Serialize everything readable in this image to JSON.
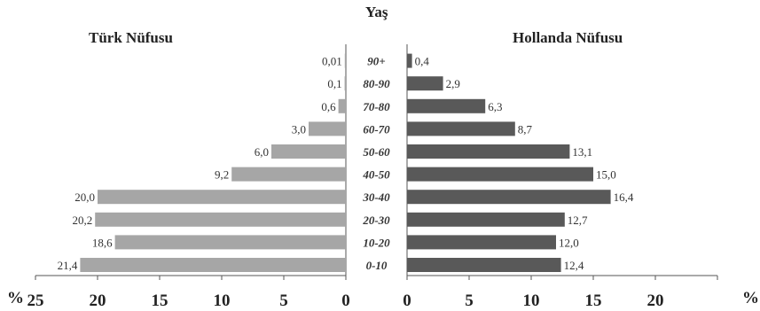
{
  "chart_data": {
    "type": "bar",
    "orientation": "horizontal",
    "layout": "population-pyramid",
    "title": "Yaş",
    "categories": [
      "0-10",
      "10-20",
      "20-30",
      "30-40",
      "40-50",
      "50-60",
      "60-70",
      "70-80",
      "80-90",
      "90+"
    ],
    "series": [
      {
        "name": "Türk Nüfusu",
        "side": "left",
        "color": "#a6a6a6",
        "values": [
          21.4,
          18.6,
          20.2,
          20.0,
          9.2,
          6.0,
          3.0,
          0.6,
          0.1,
          0.01
        ],
        "labels": [
          "21,4",
          "18,6",
          "20,2",
          "20,0",
          "9,2",
          "6,0",
          "3,0",
          "0,6",
          "0,1",
          "0,01"
        ]
      },
      {
        "name": "Hollanda Nüfusu",
        "side": "right",
        "color": "#595959",
        "values": [
          12.4,
          12.0,
          12.7,
          16.4,
          15.0,
          13.1,
          8.7,
          6.3,
          2.9,
          0.4
        ],
        "labels": [
          "12,4",
          "12,0",
          "12,7",
          "16,4",
          "15,0",
          "13,1",
          "8,7",
          "6,3",
          "2,9",
          "0,4"
        ]
      }
    ],
    "xlim": [
      0,
      25
    ],
    "xticks": [
      0,
      5,
      10,
      15,
      20,
      25
    ],
    "unit_label": "%",
    "grid": false,
    "legend": "none"
  }
}
